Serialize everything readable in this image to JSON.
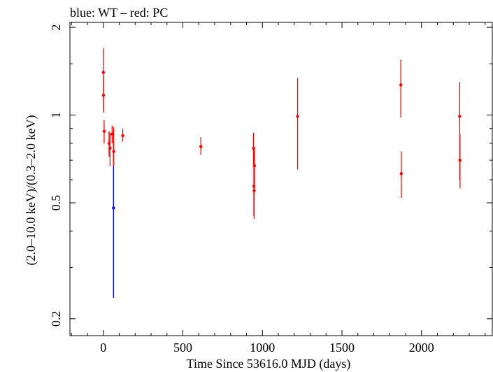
{
  "chart_data": {
    "type": "scatter",
    "title": "blue: WT – red: PC",
    "xlabel": "Time Since 53616.0 MJD (days)",
    "ylabel": "(2.0–10.0 keV)/(0.3–2.0 keV)",
    "yscale": "log",
    "xlim": [
      -210,
      2445
    ],
    "ylim": [
      0.175,
      2.08
    ],
    "xticks": [
      0,
      500,
      1000,
      1500,
      2000
    ],
    "xtick_labels": [
      "0",
      "500",
      "1000",
      "1500",
      "2000"
    ],
    "yticks": [
      0.2,
      0.5,
      1,
      2
    ],
    "ytick_labels": [
      "0.2",
      "0.5",
      "1",
      "2"
    ],
    "grid": false,
    "colors": {
      "WT": "#0000ff",
      "PC": "#ff0000"
    },
    "series": [
      {
        "name": "WT",
        "points": [
          {
            "x": 64,
            "y": 0.48,
            "ylo": 0.236,
            "yhi": 0.88
          }
        ]
      },
      {
        "name": "PC",
        "points": [
          {
            "x": 0,
            "y": 1.4,
            "ylo": 1.04,
            "yhi": 1.7
          },
          {
            "x": 1,
            "y": 1.17,
            "ylo": 1.02,
            "yhi": 1.35
          },
          {
            "x": 5,
            "y": 0.88,
            "ylo": 0.8,
            "yhi": 0.96
          },
          {
            "x": 36,
            "y": 0.8,
            "ylo": 0.72,
            "yhi": 0.88
          },
          {
            "x": 42,
            "y": 0.77,
            "ylo": 0.67,
            "yhi": 0.87
          },
          {
            "x": 55,
            "y": 0.86,
            "ylo": 0.8,
            "yhi": 0.92
          },
          {
            "x": 65,
            "y": 0.75,
            "ylo": 0.67,
            "yhi": 0.91
          },
          {
            "x": 122,
            "y": 0.85,
            "ylo": 0.81,
            "yhi": 0.9
          },
          {
            "x": 613,
            "y": 0.78,
            "ylo": 0.73,
            "yhi": 0.84
          },
          {
            "x": 944,
            "y": 0.77,
            "ylo": 0.68,
            "yhi": 0.87
          },
          {
            "x": 946,
            "y": 0.57,
            "ylo": 0.45,
            "yhi": 0.75
          },
          {
            "x": 948,
            "y": 0.55,
            "ylo": 0.44,
            "yhi": 0.72
          },
          {
            "x": 950,
            "y": 0.67,
            "ylo": 0.56,
            "yhi": 0.77
          },
          {
            "x": 1221,
            "y": 0.99,
            "ylo": 0.65,
            "yhi": 1.34
          },
          {
            "x": 1870,
            "y": 1.27,
            "ylo": 0.98,
            "yhi": 1.55
          },
          {
            "x": 1873,
            "y": 0.63,
            "ylo": 0.52,
            "yhi": 0.75
          },
          {
            "x": 2240,
            "y": 0.99,
            "ylo": 0.6,
            "yhi": 1.3
          },
          {
            "x": 2242,
            "y": 0.7,
            "ylo": 0.56,
            "yhi": 0.86
          }
        ]
      }
    ]
  }
}
